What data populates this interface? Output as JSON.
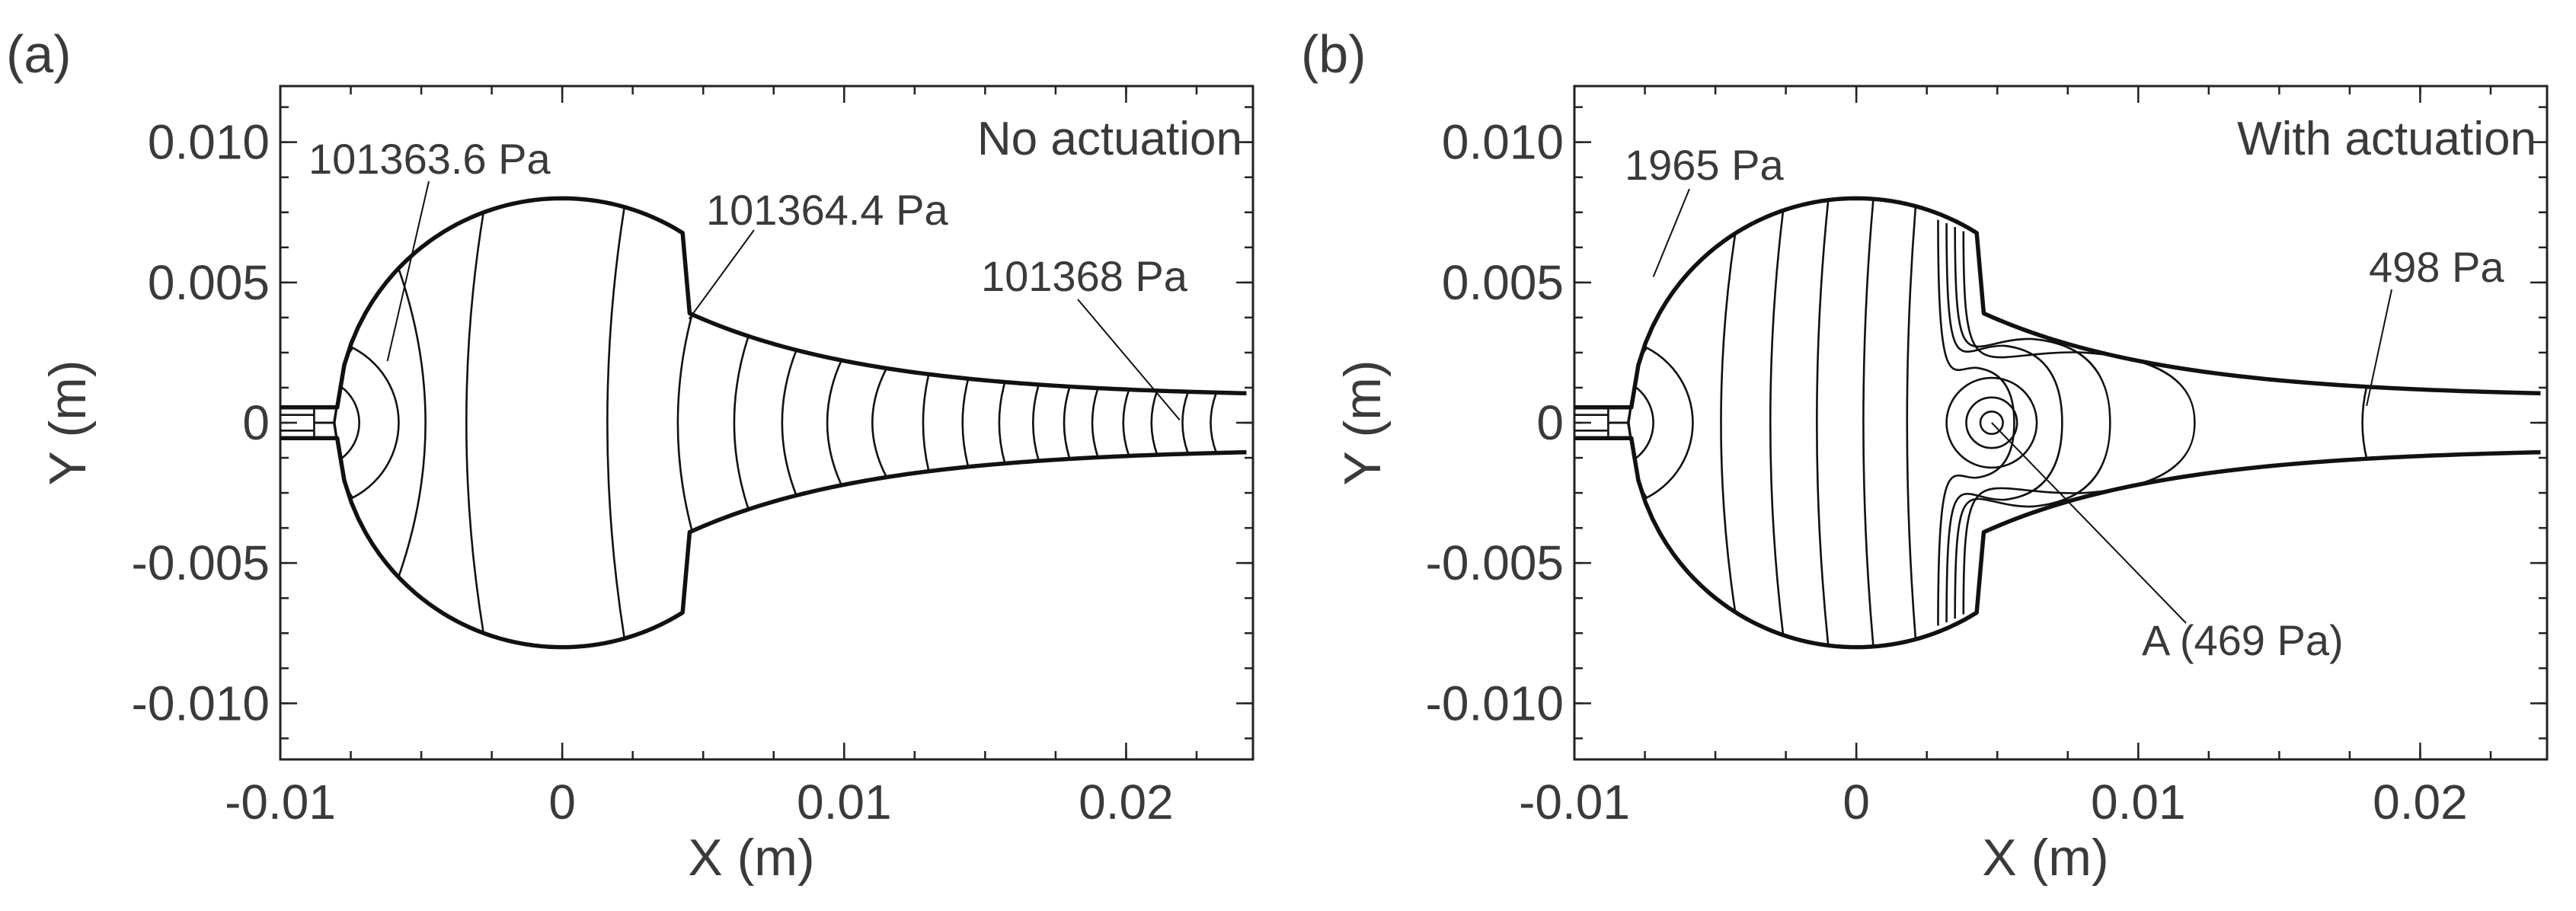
{
  "chart_data": [
    {
      "type": "contour",
      "panel_label": "(a)",
      "title": "No actuation",
      "xlabel": "X (m)",
      "ylabel": "Y (m)",
      "xlim": [
        -0.01,
        0.0245
      ],
      "ylim": [
        -0.012,
        0.012
      ],
      "xticks": [
        -0.01,
        0,
        0.01,
        0.02
      ],
      "xtick_labels": [
        "-0.01",
        "0",
        "0.01",
        "0.02"
      ],
      "yticks": [
        0.01,
        0.005,
        0,
        -0.005,
        -0.01
      ],
      "ytick_labels": [
        "0.010",
        "0.005",
        "0",
        "-0.005",
        "-0.010"
      ],
      "annotations": [
        {
          "text": "101363.6 Pa",
          "point": [
            -0.0062,
            0.0022
          ]
        },
        {
          "text": "101364.4 Pa",
          "point": [
            0.0045,
            0.0037
          ]
        },
        {
          "text": "101368 Pa",
          "point": [
            0.0219,
            0.0001
          ]
        }
      ],
      "contour_x_positions": [
        -0.0079,
        -0.0071,
        -0.006,
        -0.0028,
        0.0022,
        0.0046,
        0.0066,
        0.0083,
        0.0099,
        0.0115,
        0.013,
        0.0144,
        0.0157,
        0.0169,
        0.018,
        0.019,
        0.0201,
        0.0211,
        0.0222,
        0.0232
      ]
    },
    {
      "type": "contour",
      "panel_label": "(b)",
      "title": "With actuation",
      "xlabel": "X (m)",
      "ylabel": "Y (m)",
      "xlim": [
        -0.01,
        0.0245
      ],
      "ylim": [
        -0.012,
        0.012
      ],
      "xticks": [
        -0.01,
        0,
        0.01,
        0.02
      ],
      "xtick_labels": [
        "-0.01",
        "0",
        "0.01",
        "0.02"
      ],
      "yticks": [
        0.01,
        0.005,
        0,
        -0.005,
        -0.01
      ],
      "ytick_labels": [
        "0.010",
        "0.005",
        "0",
        "-0.005",
        "-0.010"
      ],
      "annotations": [
        {
          "text": "1965 Pa",
          "point": [
            -0.0072,
            0.0052
          ]
        },
        {
          "text": "498 Pa",
          "point": [
            0.0181,
            0.0006
          ]
        },
        {
          "text": "A (469 Pa)",
          "point": [
            0.0048,
            0.0
          ]
        }
      ],
      "contour_x_positions": [
        -0.0079,
        -0.0071,
        -0.006,
        -0.0043,
        -0.0026,
        -0.001,
        0.0006,
        0.0021
      ],
      "vortex_center": [
        0.0048,
        0.0
      ],
      "far_contour_x": 0.0181
    }
  ]
}
